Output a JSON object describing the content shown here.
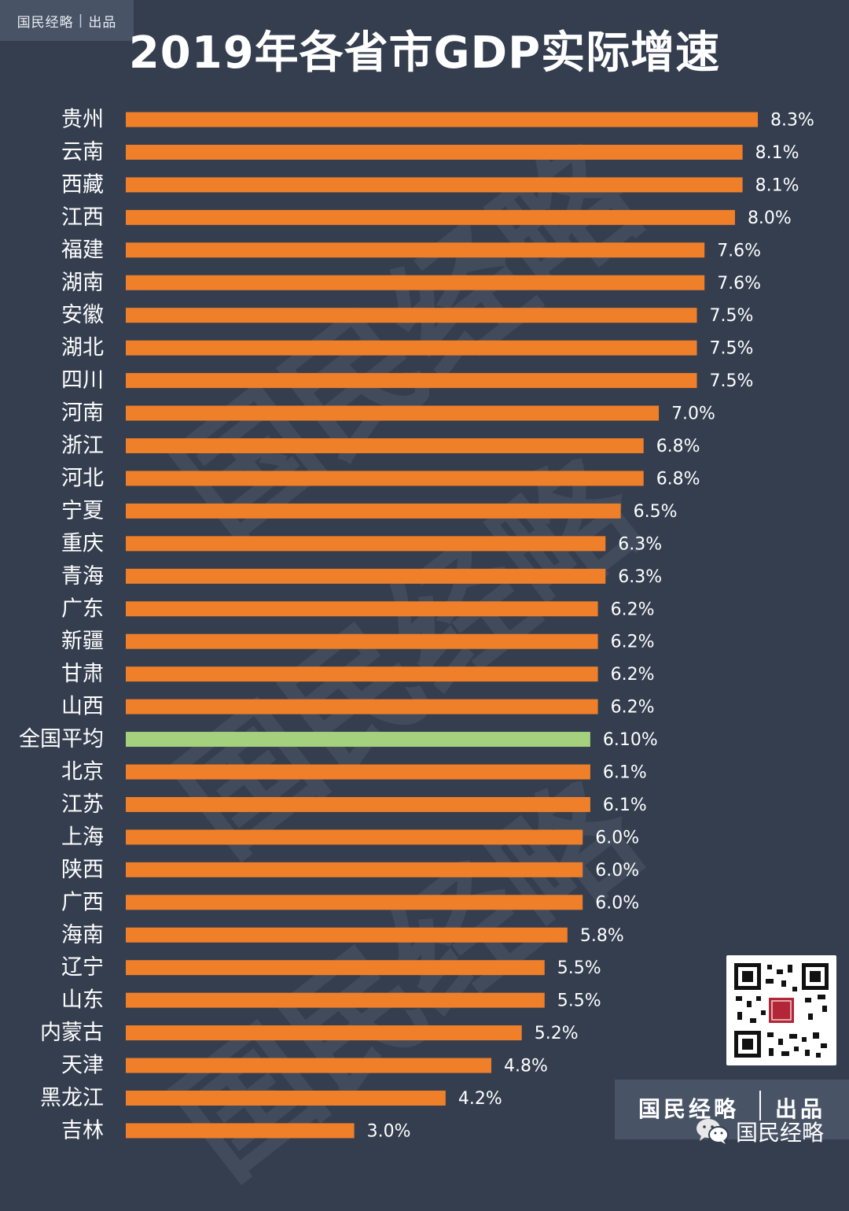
{
  "badge": {
    "brand": "国民经略",
    "sep": "|",
    "made": "出品"
  },
  "watermark_text": "国民经略",
  "footer": {
    "brand": "国民经略",
    "made": "出品",
    "wechat_name": "国民经略"
  },
  "colors": {
    "background": "#343e4f",
    "bar": "#f07f2a",
    "highlight_bar": "#a5d17e",
    "label": "#ffffff"
  },
  "chart_data": {
    "type": "bar",
    "orientation": "horizontal",
    "title": "2019年各省市GDP实际增速",
    "categories": [
      "贵州",
      "云南",
      "西藏",
      "江西",
      "福建",
      "湖南",
      "安徽",
      "湖北",
      "四川",
      "河南",
      "浙江",
      "河北",
      "宁夏",
      "重庆",
      "青海",
      "广东",
      "新疆",
      "甘肃",
      "山西",
      "全国平均",
      "北京",
      "江苏",
      "上海",
      "陕西",
      "广西",
      "海南",
      "辽宁",
      "山东",
      "内蒙古",
      "天津",
      "黑龙江",
      "吉林"
    ],
    "values": [
      8.3,
      8.1,
      8.1,
      8.0,
      7.6,
      7.6,
      7.5,
      7.5,
      7.5,
      7.0,
      6.8,
      6.8,
      6.5,
      6.3,
      6.3,
      6.2,
      6.2,
      6.2,
      6.2,
      6.1,
      6.1,
      6.1,
      6.0,
      6.0,
      6.0,
      5.8,
      5.5,
      5.5,
      5.2,
      4.8,
      4.2,
      3.0
    ],
    "value_labels": [
      "8.3%",
      "8.1%",
      "8.1%",
      "8.0%",
      "7.6%",
      "7.6%",
      "7.5%",
      "7.5%",
      "7.5%",
      "7.0%",
      "6.8%",
      "6.8%",
      "6.5%",
      "6.3%",
      "6.3%",
      "6.2%",
      "6.2%",
      "6.2%",
      "6.2%",
      "6.10%",
      "6.1%",
      "6.1%",
      "6.0%",
      "6.0%",
      "6.0%",
      "5.8%",
      "5.5%",
      "5.5%",
      "5.2%",
      "4.8%",
      "4.2%",
      "3.0%"
    ],
    "highlight_category": "全国平均",
    "xlabel": "",
    "ylabel": "",
    "xlim": [
      0,
      8.3
    ],
    "grid": false,
    "legend": "none"
  }
}
